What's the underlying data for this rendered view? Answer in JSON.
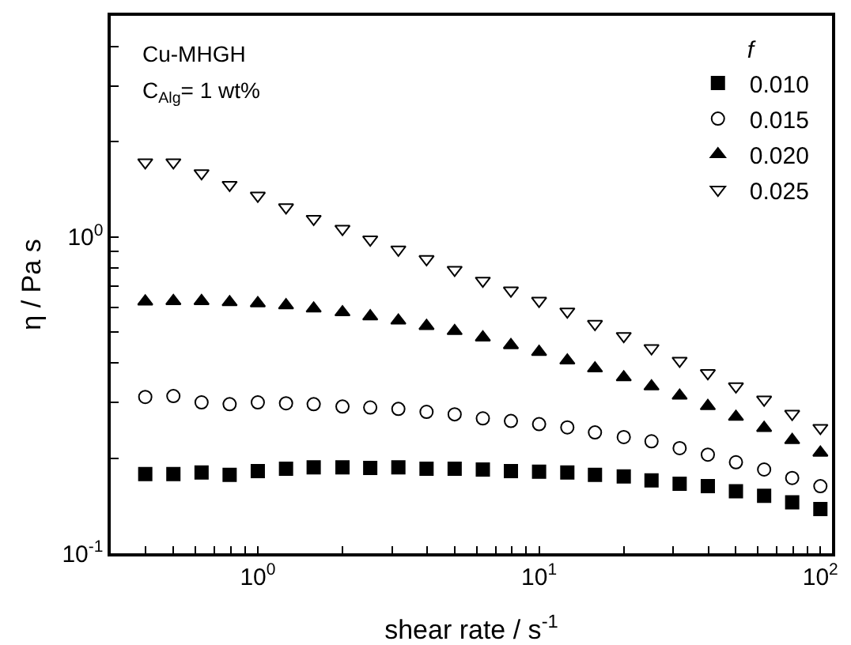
{
  "chart_data": {
    "type": "scatter",
    "xlabel": "shear rate / s$^{-1}$",
    "ylabel": "η / Pa s",
    "legend_title": "f",
    "annotations": [
      "Cu-MHGH",
      "C$_{Alg}$= 1 wt%"
    ],
    "x": [
      0.398,
      0.501,
      0.631,
      0.794,
      1.0,
      1.26,
      1.58,
      2.0,
      2.51,
      3.16,
      3.98,
      5.01,
      6.31,
      7.94,
      10,
      12.6,
      15.8,
      20,
      25.1,
      31.6,
      39.8,
      50.1,
      63.1,
      79.4,
      100
    ],
    "series": [
      {
        "name": "0.010",
        "color": "#000000",
        "marker": "square",
        "values": [
          0.178,
          0.178,
          0.18,
          0.177,
          0.182,
          0.185,
          0.187,
          0.187,
          0.186,
          0.187,
          0.185,
          0.185,
          0.184,
          0.182,
          0.181,
          0.18,
          0.177,
          0.175,
          0.17,
          0.166,
          0.163,
          0.157,
          0.152,
          0.145,
          0.138
        ]
      },
      {
        "name": "0.015",
        "color": "#000000",
        "marker": "circle-open",
        "values": [
          0.312,
          0.314,
          0.3,
          0.296,
          0.3,
          0.298,
          0.296,
          0.291,
          0.289,
          0.286,
          0.28,
          0.275,
          0.267,
          0.262,
          0.256,
          0.25,
          0.241,
          0.233,
          0.226,
          0.215,
          0.205,
          0.194,
          0.184,
          0.173,
          0.163
        ]
      },
      {
        "name": "0.020",
        "color": "#000000",
        "marker": "triangle",
        "values": [
          0.625,
          0.627,
          0.627,
          0.622,
          0.617,
          0.608,
          0.594,
          0.578,
          0.561,
          0.544,
          0.523,
          0.504,
          0.481,
          0.455,
          0.433,
          0.407,
          0.384,
          0.36,
          0.337,
          0.315,
          0.292,
          0.27,
          0.249,
          0.228,
          0.208
        ]
      },
      {
        "name": "0.025",
        "color": "#000000",
        "marker": "triangle-down-open",
        "values": [
          1.72,
          1.72,
          1.59,
          1.46,
          1.35,
          1.24,
          1.14,
          1.06,
          0.981,
          0.912,
          0.851,
          0.787,
          0.727,
          0.677,
          0.628,
          0.581,
          0.531,
          0.486,
          0.445,
          0.406,
          0.371,
          0.337,
          0.306,
          0.276,
          0.249
        ]
      }
    ],
    "log": "xy",
    "xlim": [
      0.3,
      110
    ],
    "ylim": [
      0.1,
      5
    ],
    "xticks": [
      {
        "value": 0.3,
        "label": null
      },
      {
        "value": 0.4,
        "label": null
      },
      {
        "value": 0.5,
        "label": null
      },
      {
        "value": 0.6,
        "label": null
      },
      {
        "value": 0.7,
        "label": null
      },
      {
        "value": 0.8,
        "label": null
      },
      {
        "value": 0.9,
        "label": null
      },
      {
        "value": 1,
        "label": "10$^{0}$"
      },
      {
        "value": 2,
        "label": null
      },
      {
        "value": 3,
        "label": null
      },
      {
        "value": 4,
        "label": null
      },
      {
        "value": 5,
        "label": null
      },
      {
        "value": 6,
        "label": null
      },
      {
        "value": 7,
        "label": null
      },
      {
        "value": 8,
        "label": null
      },
      {
        "value": 9,
        "label": null
      },
      {
        "value": 10,
        "label": "10$^{1}$"
      },
      {
        "value": 20,
        "label": null
      },
      {
        "value": 30,
        "label": null
      },
      {
        "value": 40,
        "label": null
      },
      {
        "value": 50,
        "label": null
      },
      {
        "value": 60,
        "label": null
      },
      {
        "value": 70,
        "label": null
      },
      {
        "value": 80,
        "label": null
      },
      {
        "value": 90,
        "label": null
      },
      {
        "value": 100,
        "label": "10$^{2}$"
      }
    ],
    "yticks": [
      {
        "value": 0.1,
        "label": "10$^{-1}$"
      },
      {
        "value": 0.2,
        "label": null
      },
      {
        "value": 0.3,
        "label": null
      },
      {
        "value": 0.4,
        "label": null
      },
      {
        "value": 0.5,
        "label": null
      },
      {
        "value": 0.6,
        "label": null
      },
      {
        "value": 0.7,
        "label": null
      },
      {
        "value": 0.8,
        "label": null
      },
      {
        "value": 0.9,
        "label": null
      },
      {
        "value": 1,
        "label": "10$^{0}$"
      },
      {
        "value": 2,
        "label": null
      },
      {
        "value": 3,
        "label": null
      },
      {
        "value": 4,
        "label": null
      },
      {
        "value": 5,
        "label": null
      }
    ],
    "grid": false,
    "legend": "top right"
  }
}
